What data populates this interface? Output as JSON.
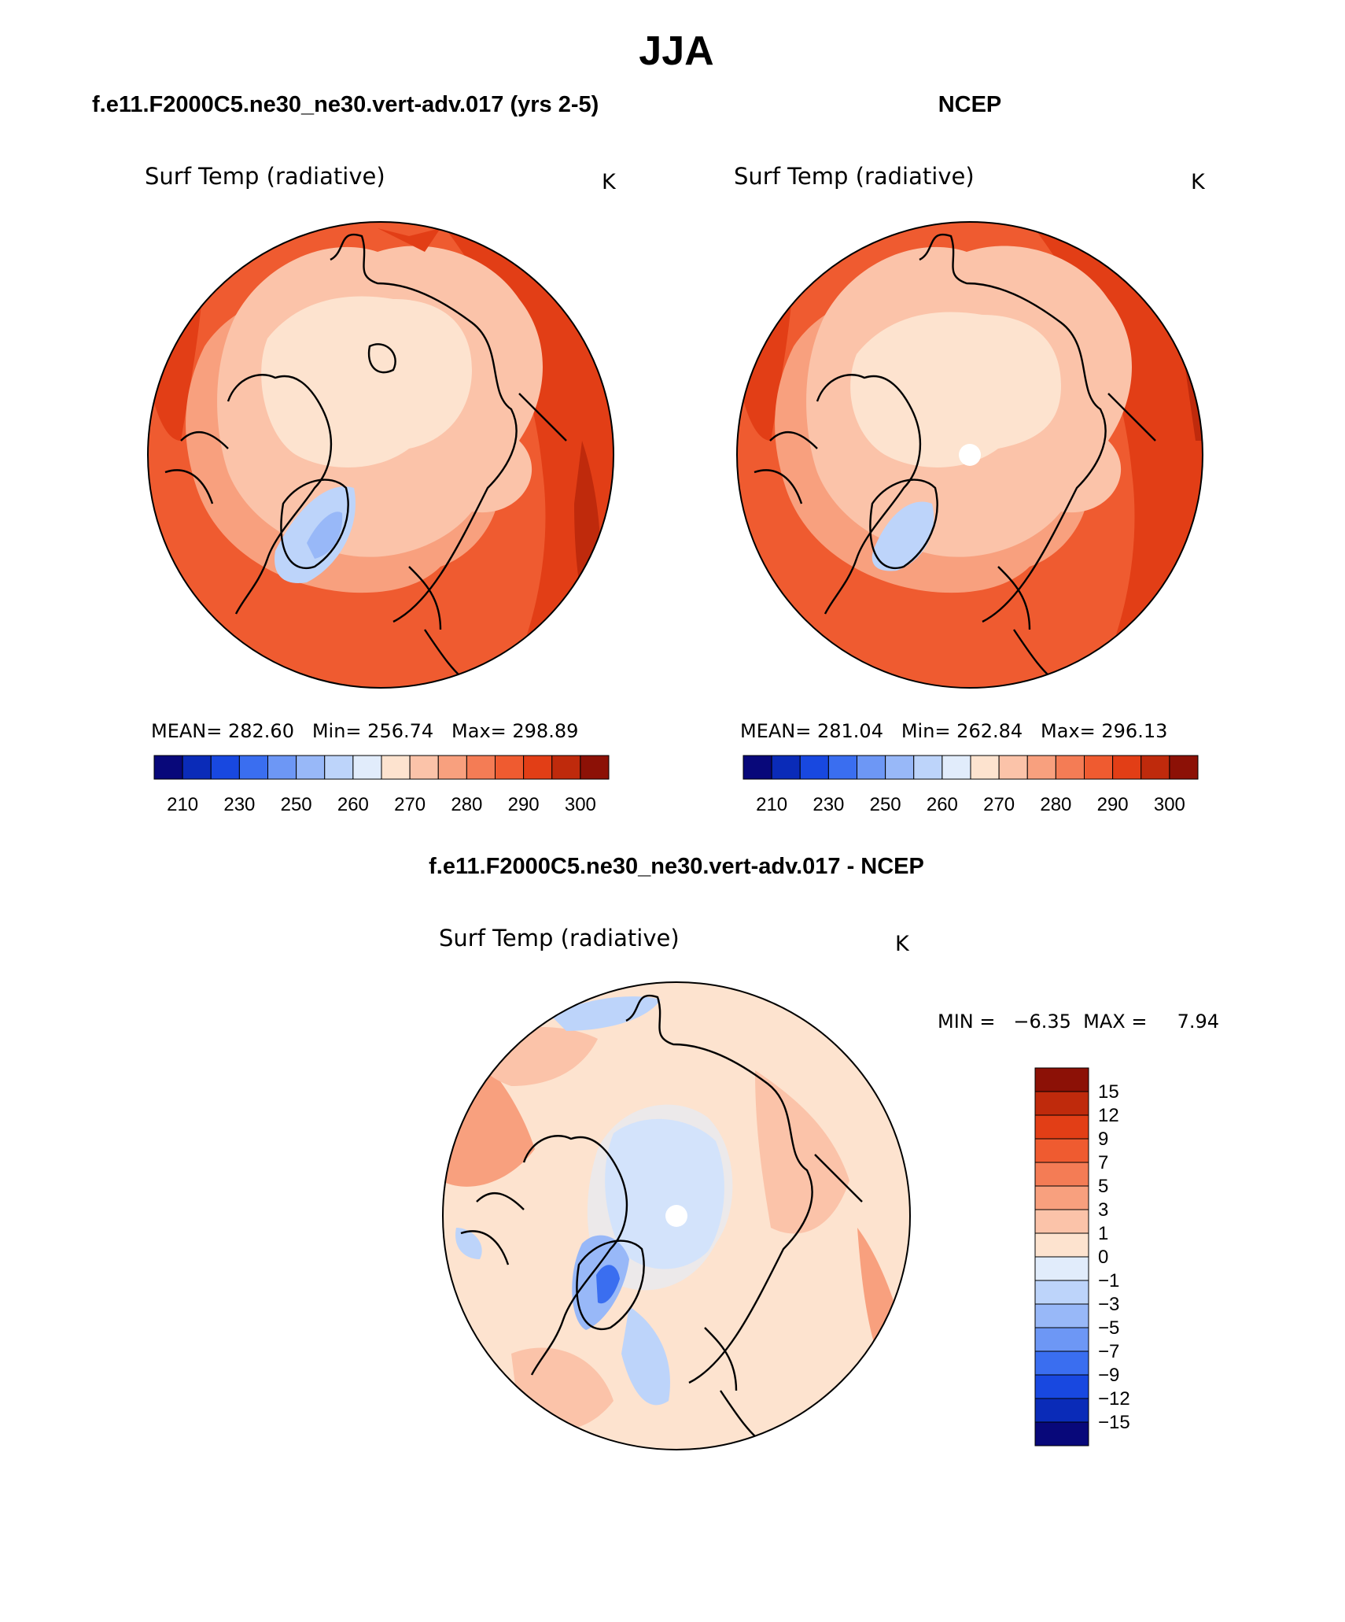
{
  "figure": {
    "title": "JJA"
  },
  "panels": [
    {
      "heading": "f.e11.F2000C5.ne30_ne30.vert-adv.017 (yrs 2-5)",
      "variable": "Surf Temp (radiative)",
      "units": "K",
      "stats_text": "MEAN= 282.60   Min= 256.74   Max= 298.89"
    },
    {
      "heading": "NCEP",
      "variable": "Surf Temp (radiative)",
      "units": "K",
      "stats_text": "MEAN= 281.04   Min= 262.84   Max= 296.13"
    },
    {
      "heading": "f.e11.F2000C5.ne30_ne30.vert-adv.017 - NCEP",
      "variable": "Surf Temp (radiative)",
      "units": "K",
      "stats_text": "MIN =   −6.35  MAX =     7.94"
    }
  ],
  "chart_data": [
    {
      "type": "heatmap",
      "projection": "north polar stereographic",
      "panel": "model",
      "mean": 282.6,
      "min": 256.74,
      "max": 298.89,
      "colorbar": {
        "levels": [
          210,
          230,
          250,
          260,
          270,
          280,
          290,
          300
        ],
        "colors": [
          "#08087a",
          "#0a2bb8",
          "#1848e0",
          "#3a6ef0",
          "#6d97f5",
          "#98b8f8",
          "#bdd4fa",
          "#e1ecfb",
          "#fde3cf",
          "#fbc3a9",
          "#f8a07e",
          "#f47c55",
          "#ef5b30",
          "#e23e16",
          "#bf2a0c",
          "#8c1106"
        ]
      }
    },
    {
      "type": "heatmap",
      "projection": "north polar stereographic",
      "panel": "obs",
      "mean": 281.04,
      "min": 262.84,
      "max": 296.13,
      "colorbar": {
        "levels": [
          210,
          230,
          250,
          260,
          270,
          280,
          290,
          300
        ],
        "colors": [
          "#08087a",
          "#0a2bb8",
          "#1848e0",
          "#3a6ef0",
          "#6d97f5",
          "#98b8f8",
          "#bdd4fa",
          "#e1ecfb",
          "#fde3cf",
          "#fbc3a9",
          "#f8a07e",
          "#f47c55",
          "#ef5b30",
          "#e23e16",
          "#bf2a0c",
          "#8c1106"
        ]
      }
    },
    {
      "type": "heatmap",
      "projection": "north polar stereographic",
      "panel": "difference",
      "min": -6.35,
      "max": 7.94,
      "colorbar": {
        "levels": [
          "15",
          "12",
          "9",
          "7",
          "5",
          "3",
          "1",
          "0",
          "−1",
          "−3",
          "−5",
          "−7",
          "−9",
          "−12",
          "−15"
        ],
        "colors": [
          "#8c1106",
          "#bf2a0c",
          "#e23e16",
          "#ef5b30",
          "#f47c55",
          "#f8a07e",
          "#fbc3a9",
          "#fde3cf",
          "#e1ecfb",
          "#bdd4fa",
          "#98b8f8",
          "#6d97f5",
          "#3a6ef0",
          "#1848e0",
          "#0a2bb8",
          "#08087a"
        ]
      }
    }
  ]
}
